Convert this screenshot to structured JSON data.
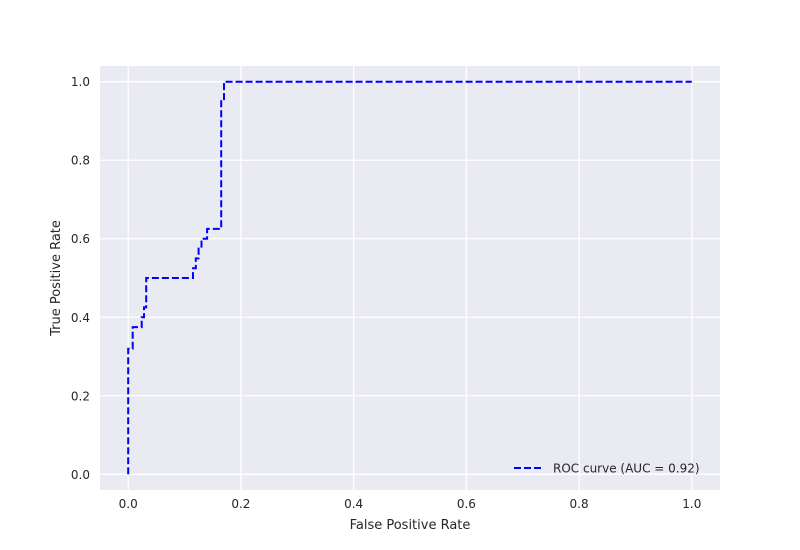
{
  "chart_data": {
    "type": "line",
    "title": "",
    "xlabel": "False Positive Rate",
    "ylabel": "True Positive Rate",
    "xlim": [
      -0.05,
      1.05
    ],
    "ylim": [
      -0.04,
      1.04
    ],
    "xticks": [
      "0.0",
      "0.2",
      "0.4",
      "0.6",
      "0.8",
      "1.0"
    ],
    "yticks": [
      "0.0",
      "0.2",
      "0.4",
      "0.6",
      "0.8",
      "1.0"
    ],
    "grid": true,
    "legend": {
      "placement": "lower-right"
    },
    "series": [
      {
        "name": "ROC curve (AUC = 0.92)",
        "color": "#0000ff",
        "style": "dashed",
        "x": [
          0.0,
          0.0,
          0.0,
          0.0,
          0.008,
          0.008,
          0.008,
          0.024,
          0.024,
          0.028,
          0.028,
          0.032,
          0.032,
          0.115,
          0.115,
          0.12,
          0.12,
          0.125,
          0.125,
          0.13,
          0.13,
          0.14,
          0.14,
          0.15,
          0.15,
          0.165,
          0.165,
          0.17,
          0.17,
          1.0
        ],
        "y": [
          0.0,
          0.3,
          0.32,
          0.32,
          0.32,
          0.35,
          0.375,
          0.375,
          0.4,
          0.4,
          0.425,
          0.425,
          0.5,
          0.5,
          0.525,
          0.525,
          0.55,
          0.55,
          0.575,
          0.575,
          0.6,
          0.6,
          0.625,
          0.625,
          0.625,
          0.625,
          0.95,
          0.95,
          1.0,
          1.0
        ]
      }
    ]
  }
}
